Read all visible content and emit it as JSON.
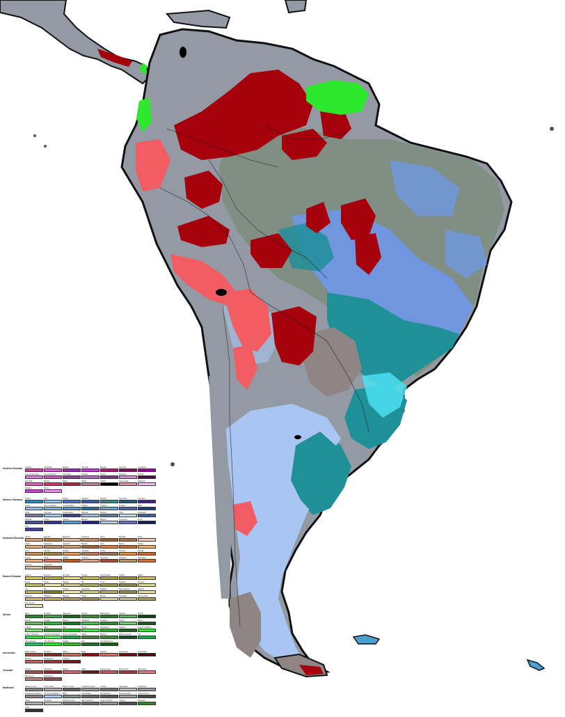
{
  "map": {
    "colors": {
      "ocean": "#ffffff",
      "coast": "#111111",
      "land_gray": "#939aa3",
      "land_light_blue": "#a9c6f2",
      "teal": "#1f8f98",
      "dark_red": "#a5000c",
      "salmon": "#f25c63",
      "bright_green": "#2ee82e",
      "mid_blue": "#6f98f0",
      "gray_brown": "#8e8584",
      "cyan": "#4ce0f0",
      "gray_green": "#7f8f84"
    }
  },
  "legend": {
    "groups": [
      {
        "title": "Southern Eurasian",
        "items": [
          {
            "label": "Gujarati",
            "color": "#c04aa6"
          },
          {
            "label": "Hindustani",
            "color": "#d06ad0"
          },
          {
            "label": "Marathi",
            "color": "#8a3aa0"
          },
          {
            "label": "SE India",
            "color": "#b04ac0"
          },
          {
            "label": "Bengali",
            "color": "#a0207a"
          },
          {
            "label": "NE India",
            "color": "#6a1a6a"
          },
          {
            "label": "Himalayan",
            "color": "#8a1090"
          },
          {
            "label": "Indo-South Asian",
            "color": "#e07ae0"
          },
          {
            "label": "Indo-Caribbean",
            "color": "#c05ac0"
          },
          {
            "label": "Indo-Fijian",
            "color": "#904090"
          },
          {
            "label": "Sinhala",
            "color": "#b070c0"
          },
          {
            "label": "Indo-Ar",
            "color": "#7a3a7a"
          },
          {
            "label": "Nepalese",
            "color": "#d090d0"
          },
          {
            "label": "Punjabi",
            "color": "#4a104a"
          },
          {
            "label": "Dravidian",
            "color": "#e060c0"
          },
          {
            "label": "Bhutan",
            "color": "#c04060"
          },
          {
            "label": "Malay",
            "color": "#a03040"
          },
          {
            "label": "Sindhi",
            "color": "#c080a0"
          },
          {
            "label": "Arakan",
            "color": "#000000"
          },
          {
            "label": "South Asian",
            "color": "#e090a0"
          },
          {
            "label": "Maldivian",
            "color": "#f0c0f0"
          },
          {
            "label": "Sinhala",
            "color": "#d040d0"
          },
          {
            "label": "Khmer",
            "color": "#f090f0"
          }
        ]
      },
      {
        "title": "Northern Eurasian",
        "items": [
          {
            "label": "Franco",
            "color": "#2a8ad0"
          },
          {
            "label": "Italo",
            "color": "#90c0f0"
          },
          {
            "label": "Iberian",
            "color": "#5070e0"
          },
          {
            "label": "Nordicus",
            "color": "#3a60b0"
          },
          {
            "label": "Rhodian",
            "color": "#2a9090"
          },
          {
            "label": "Germanic",
            "color": "#1a6080"
          },
          {
            "label": "Czechian",
            "color": "#4020a0"
          },
          {
            "label": "Greek",
            "color": "#a0c0f0"
          },
          {
            "label": "Ibero-Lusitanian",
            "color": "#80b0f0"
          },
          {
            "label": "Luso-Brazilian",
            "color": "#6090f0"
          },
          {
            "label": "E.Slavic",
            "color": "#2070c0"
          },
          {
            "label": "S.Slavic",
            "color": "#70a0e0"
          },
          {
            "label": "E.Slavic",
            "color": "#5060c0"
          },
          {
            "label": "Baltic",
            "color": "#1a4070"
          },
          {
            "label": "Anglo",
            "color": "#8080a0"
          },
          {
            "label": "Germanic",
            "color": "#a0d0f0"
          },
          {
            "label": "Scandinavian",
            "color": "#4040a0"
          },
          {
            "label": "Albanian",
            "color": "#a0c0e0"
          },
          {
            "label": "Bretonic",
            "color": "#6080a0"
          },
          {
            "label": "Celtic",
            "color": "#c0e0f0"
          },
          {
            "label": "Finnlandic",
            "color": "#3a60c0"
          },
          {
            "label": "Albanian",
            "color": "#4050a0"
          },
          {
            "label": "Greek",
            "color": "#3030b0"
          },
          {
            "label": "Caspian",
            "color": "#50a0d0"
          },
          {
            "label": "Maltese",
            "color": "#2020a0"
          },
          {
            "label": "Basque",
            "color": "#b0d0f0"
          },
          {
            "label": "Hungarian",
            "color": "#6070d0"
          },
          {
            "label": "Finnic",
            "color": "#0a2060"
          },
          {
            "label": "Tatar",
            "color": "#4040c0"
          }
        ]
      },
      {
        "title": "Southwest Eurasian",
        "items": [
          {
            "label": "Iranian",
            "color": "#e0a070"
          },
          {
            "label": "Egyptian",
            "color": "#c08040"
          },
          {
            "label": "Maghrebi",
            "color": "#f0c090"
          },
          {
            "label": "Levantine",
            "color": "#d09060"
          },
          {
            "label": "Druze",
            "color": "#a06030"
          },
          {
            "label": "Mandaic",
            "color": "#b07040"
          },
          {
            "label": "Israel",
            "color": "#f0d0b0"
          },
          {
            "label": "Arabic",
            "color": "#e0b080"
          },
          {
            "label": "Ashkenazi",
            "color": "#c09070"
          },
          {
            "label": "Sephardi",
            "color": "#d0a070"
          },
          {
            "label": "Mizrahi",
            "color": "#a06840"
          },
          {
            "label": "Gulf",
            "color": "#e08040"
          },
          {
            "label": "Berber",
            "color": "#c07030"
          },
          {
            "label": "Turkey",
            "color": "#f0b070"
          },
          {
            "label": "Kurd",
            "color": "#d09050"
          },
          {
            "label": "Caucas",
            "color": "#b08050"
          },
          {
            "label": "Persian",
            "color": "#e0a060"
          },
          {
            "label": "Anatolian",
            "color": "#c08050"
          },
          {
            "label": "Pontic",
            "color": "#a07050"
          },
          {
            "label": "S.Iranic",
            "color": "#e09040"
          },
          {
            "label": "Ossetic",
            "color": "#c07040"
          },
          {
            "label": "Cypriot",
            "color": "#f0b080"
          },
          {
            "label": "Turkic",
            "color": "#d08060"
          },
          {
            "label": "Nilotian",
            "color": "#b06030"
          },
          {
            "label": "Turkmen",
            "color": "#e0a080"
          },
          {
            "label": "Armenian",
            "color": "#a05030"
          },
          {
            "label": "Georgian",
            "color": "#c09060"
          },
          {
            "label": "Azerbaijan",
            "color": "#d07040"
          },
          {
            "label": "Assyrian",
            "color": "#e0c0a0"
          },
          {
            "label": "Circassian",
            "color": "#b08060"
          }
        ]
      },
      {
        "title": "Eastern Eurasian",
        "items": [
          {
            "label": "Japonic",
            "color": "#e0d040"
          },
          {
            "label": "Koreanic",
            "color": "#c0b030"
          },
          {
            "label": "Mongolic",
            "color": "#f0e070"
          },
          {
            "label": "Tungus",
            "color": "#d0c050"
          },
          {
            "label": "Sino-Tibetan",
            "color": "#b0a030"
          },
          {
            "label": "Tibetan",
            "color": "#a09020"
          },
          {
            "label": "Hakka",
            "color": "#e0c040"
          },
          {
            "label": "E.Han",
            "color": "#c0c060"
          },
          {
            "label": "S.Han",
            "color": "#f0f090"
          },
          {
            "label": "SE.Han",
            "color": "#d0d070"
          },
          {
            "label": "Wu",
            "color": "#b0b050"
          },
          {
            "label": "Yunui",
            "color": "#a0a040"
          },
          {
            "label": "Uyghuric",
            "color": "#909030"
          },
          {
            "label": "Kyrgyan",
            "color": "#e0e080"
          },
          {
            "label": "Yue",
            "color": "#c0c040"
          },
          {
            "label": "Min",
            "color": "#808020"
          },
          {
            "label": "Tungus",
            "color": "#f0f0b0"
          },
          {
            "label": "Kamchatic",
            "color": "#d0d080"
          },
          {
            "label": "Hokkien",
            "color": "#b0b060"
          },
          {
            "label": "Nan-Chinese",
            "color": "#909040"
          },
          {
            "label": "Manchu",
            "color": "#f0e0a0"
          },
          {
            "label": "Filipinoid",
            "color": "#d0c060"
          },
          {
            "label": "Philippine",
            "color": "#c0b050"
          },
          {
            "label": "Malayan",
            "color": "#b0a050"
          },
          {
            "label": "Tibetic",
            "color": "#a09040"
          },
          {
            "label": "Burmic",
            "color": "#e0d080"
          },
          {
            "label": "Tai-Kadai",
            "color": "#c0c080"
          },
          {
            "label": "Hmong-Mien",
            "color": "#a0a060"
          },
          {
            "label": "Mon-Khmer",
            "color": "#f0f0c0"
          }
        ]
      },
      {
        "title": "African",
        "items": [
          {
            "label": "Bayo",
            "color": "#2a8a2a"
          },
          {
            "label": "Zambilis",
            "color": "#4aa04a"
          },
          {
            "label": "Hikavema",
            "color": "#1a6a1a"
          },
          {
            "label": "Zimette",
            "color": "#3a903a"
          },
          {
            "label": "Bakwimindi",
            "color": "#2a7a2a"
          },
          {
            "label": "Chwabi",
            "color": "#5ab05a"
          },
          {
            "label": "Mende",
            "color": "#0a4a0a"
          },
          {
            "label": "Bukwe",
            "color": "#60c060"
          },
          {
            "label": "Namais",
            "color": "#3ab03a"
          },
          {
            "label": "Bederzi",
            "color": "#1a7a1a"
          },
          {
            "label": "W.Nigeria",
            "color": "#4ac04a"
          },
          {
            "label": "E.Nigeria",
            "color": "#2a902a"
          },
          {
            "label": "Ilamba",
            "color": "#70d070"
          },
          {
            "label": "Banta",
            "color": "#1a5a1a"
          },
          {
            "label": "Lanoba",
            "color": "#80e080"
          },
          {
            "label": "Kikia",
            "color": "#40a040"
          },
          {
            "label": "Gari",
            "color": "#2ac02a"
          },
          {
            "label": "Arwolo",
            "color": "#50e050"
          },
          {
            "label": "Cardhaeas",
            "color": "#30b030"
          },
          {
            "label": "Rogamu",
            "color": "#206020"
          },
          {
            "label": "Anglo-Caribbean",
            "color": "#3ae03a"
          },
          {
            "label": "Dutch Caribbean",
            "color": "#4ad04a"
          },
          {
            "label": "Hispanic Caribbean",
            "color": "#6ae06a"
          },
          {
            "label": "Franco-Caribbean",
            "color": "#2a9a4a"
          },
          {
            "label": "Gullah",
            "color": "#4a7a4a"
          },
          {
            "label": "Brazuca",
            "color": "#3a8a3a"
          },
          {
            "label": "Black American",
            "color": "#1a4a2a"
          },
          {
            "label": "Afro",
            "color": "#2aa04a"
          },
          {
            "label": "Afro-Hispanic",
            "color": "#2ac060"
          },
          {
            "label": "Afro-Brazilian",
            "color": "#30e030"
          },
          {
            "label": "Swahili",
            "color": "#40b040"
          },
          {
            "label": "Zulu",
            "color": "#207020"
          },
          {
            "label": "Afro-Mascarene",
            "color": "#106010"
          }
        ]
      },
      {
        "title": "Amerindian",
        "items": [
          {
            "label": "Eskimo-aleut",
            "color": "#c04040"
          },
          {
            "label": "Na-Dene",
            "color": "#a02020"
          },
          {
            "label": "Plains",
            "color": "#e06060"
          },
          {
            "label": "Maya",
            "color": "#a5000c"
          },
          {
            "label": "Andean",
            "color": "#f25c63"
          },
          {
            "label": "Amazonian",
            "color": "#800010"
          },
          {
            "label": "Amerindian",
            "color": "#600008"
          },
          {
            "label": "Mestizo",
            "color": "#d06060"
          },
          {
            "label": "Patagonian",
            "color": "#b03030"
          },
          {
            "label": "Fuegian",
            "color": "#901010"
          }
        ]
      },
      {
        "title": "Oceanian",
        "items": [
          {
            "label": "Papuan",
            "color": "#a05050"
          },
          {
            "label": "Aboriginal",
            "color": "#803030"
          },
          {
            "label": "Negrito",
            "color": "#c07070"
          },
          {
            "label": "Islaid",
            "color": "#602020"
          },
          {
            "label": "Austronesian",
            "color": "#b06060"
          },
          {
            "label": "Micronesian",
            "color": "#904040"
          },
          {
            "label": "Polynesian",
            "color": "#d08080"
          },
          {
            "label": "Ethnos-ian",
            "color": "#c08080"
          },
          {
            "label": "Melanesian",
            "color": "#905050"
          }
        ]
      },
      {
        "title": "Multiracial",
        "items": [
          {
            "label": "African Creole",
            "color": "#888888"
          },
          {
            "label": "Cabo Criollo",
            "color": "#aaaaaa"
          },
          {
            "label": "Pacific Creole",
            "color": "#666666"
          },
          {
            "label": "Louisiana Creole",
            "color": "#999999"
          },
          {
            "label": "Criolloo",
            "color": "#777777"
          },
          {
            "label": "Chilenidad",
            "color": "#bbbbbb"
          },
          {
            "label": "Colombian",
            "color": "#939aa3"
          },
          {
            "label": "Paraguayan Mestizo",
            "color": "#8e8584"
          },
          {
            "label": "Portuguese Mestizo",
            "color": "#a9c6f2"
          },
          {
            "label": "Metis",
            "color": "#7f8f84"
          },
          {
            "label": "Cape Malay",
            "color": "#6a6a6a"
          },
          {
            "label": "Indo-Mestizo",
            "color": "#5a5a5a"
          },
          {
            "label": "Franco-Mestizo",
            "color": "#9a9a9a"
          },
          {
            "label": "Anglo-Mestizo",
            "color": "#4a4a4a"
          },
          {
            "label": "Pardo",
            "color": "#b0b0b0"
          },
          {
            "label": "Mestizaje",
            "color": "#c0c0c0"
          },
          {
            "label": "Platinoamerica",
            "color": "#808080"
          },
          {
            "label": "Baby-Garifuna",
            "color": "#707070"
          },
          {
            "label": "Anglo-Garifuna",
            "color": "#909090"
          },
          {
            "label": "Chagos",
            "color": "#505050"
          },
          {
            "label": "Malagasy",
            "color": "#2a8a2a"
          },
          {
            "label": "Other",
            "color": "#333333"
          }
        ]
      }
    ]
  }
}
